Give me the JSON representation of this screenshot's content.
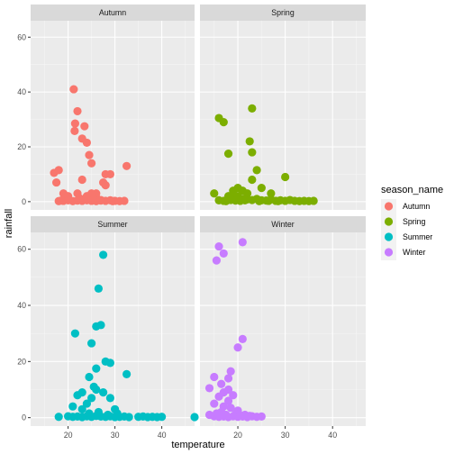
{
  "chart_data": {
    "type": "scatter",
    "facet_layout": "2x2 facet_wrap",
    "xlabel": "temperature",
    "ylabel": "rainfall",
    "xlim": [
      12,
      47
    ],
    "ylim": [
      -3,
      66
    ],
    "x_ticks": [
      20,
      30,
      40
    ],
    "y_ticks": [
      0,
      20,
      40,
      60
    ],
    "grid": true,
    "legend": {
      "title": "season_name",
      "placement": "right",
      "entries": [
        {
          "label": "Autumn",
          "color": "#F8766D"
        },
        {
          "label": "Spring",
          "color": "#7CAE00"
        },
        {
          "label": "Summer",
          "color": "#00BFC4"
        },
        {
          "label": "Winter",
          "color": "#C77CFF"
        }
      ]
    },
    "panels": [
      {
        "name": "Autumn",
        "color": "#F8766D",
        "points": [
          [
            21.2,
            41
          ],
          [
            22,
            33
          ],
          [
            21.5,
            28.5
          ],
          [
            21.4,
            25.8
          ],
          [
            23.5,
            27.5
          ],
          [
            23,
            23
          ],
          [
            24,
            21.5
          ],
          [
            24.5,
            17
          ],
          [
            25,
            14
          ],
          [
            32.5,
            13
          ],
          [
            17,
            10.5
          ],
          [
            18,
            11.5
          ],
          [
            17.5,
            7
          ],
          [
            23,
            8
          ],
          [
            28,
            10
          ],
          [
            27.5,
            7
          ],
          [
            28,
            6
          ],
          [
            26,
            3
          ],
          [
            29,
            10
          ],
          [
            19,
            3
          ],
          [
            20,
            2
          ],
          [
            22,
            3
          ],
          [
            25,
            3
          ],
          [
            24,
            2
          ],
          [
            26,
            1.5
          ],
          [
            23.5,
            1
          ],
          [
            19,
            0.3
          ],
          [
            20,
            0.5
          ],
          [
            21,
            0.2
          ],
          [
            22,
            0.4
          ],
          [
            23,
            0.3
          ],
          [
            24,
            0.5
          ],
          [
            25,
            0.3
          ],
          [
            26,
            0.2
          ],
          [
            27,
            0.4
          ],
          [
            28,
            0.3
          ],
          [
            29,
            0.5
          ],
          [
            30,
            0.3
          ],
          [
            31,
            0.2
          ],
          [
            32,
            0.3
          ],
          [
            18,
            0.2
          ],
          [
            18.5,
            0.4
          ],
          [
            22.5,
            1.2
          ],
          [
            25.5,
            0.8
          ],
          [
            27,
            0.6
          ],
          [
            29.5,
            0.2
          ]
        ]
      },
      {
        "name": "Spring",
        "color": "#7CAE00",
        "points": [
          [
            16,
            30.5
          ],
          [
            17,
            29
          ],
          [
            23,
            34
          ],
          [
            22.5,
            22
          ],
          [
            23,
            18
          ],
          [
            18,
            17.5
          ],
          [
            24,
            11.5
          ],
          [
            23,
            8
          ],
          [
            30,
            9
          ],
          [
            25,
            5
          ],
          [
            20,
            5
          ],
          [
            21,
            4
          ],
          [
            19,
            4
          ],
          [
            22,
            3
          ],
          [
            15,
            3
          ],
          [
            27,
            3
          ],
          [
            18,
            2
          ],
          [
            19,
            1.5
          ],
          [
            20,
            2
          ],
          [
            21,
            1
          ],
          [
            22,
            0.8
          ],
          [
            23,
            0.6
          ],
          [
            24,
            1
          ],
          [
            25,
            0.5
          ],
          [
            26,
            0.4
          ],
          [
            27,
            0.8
          ],
          [
            28,
            0.3
          ],
          [
            29,
            0.5
          ],
          [
            30,
            0.3
          ],
          [
            31,
            0.6
          ],
          [
            32,
            0.3
          ],
          [
            33,
            0.2
          ],
          [
            34,
            0.3
          ],
          [
            35,
            0.2
          ],
          [
            36,
            0.3
          ],
          [
            17,
            0.3
          ],
          [
            16,
            0.5
          ],
          [
            17.5,
            0.2
          ],
          [
            18.5,
            0.6
          ],
          [
            19.5,
            0.4
          ],
          [
            20.5,
            0.3
          ],
          [
            21.5,
            0.5
          ],
          [
            24.5,
            0.2
          ],
          [
            26.5,
            0.3
          ],
          [
            28.5,
            0.2
          ]
        ]
      },
      {
        "name": "Summer",
        "color": "#00BFC4",
        "points": [
          [
            27.5,
            58
          ],
          [
            26.5,
            46
          ],
          [
            26,
            32.5
          ],
          [
            27,
            33
          ],
          [
            21.5,
            30
          ],
          [
            25,
            26.5
          ],
          [
            28,
            20
          ],
          [
            29,
            19.5
          ],
          [
            32.5,
            15.5
          ],
          [
            26,
            17.5
          ],
          [
            24.5,
            14.5
          ],
          [
            25.5,
            11
          ],
          [
            26,
            10
          ],
          [
            27.5,
            9
          ],
          [
            22,
            8
          ],
          [
            23,
            9
          ],
          [
            25,
            7
          ],
          [
            29,
            7
          ],
          [
            24,
            5
          ],
          [
            21,
            4
          ],
          [
            30,
            3
          ],
          [
            23,
            3
          ],
          [
            18,
            0.3
          ],
          [
            20,
            0.5
          ],
          [
            21,
            0.3
          ],
          [
            22,
            0.4
          ],
          [
            23,
            0.2
          ],
          [
            24,
            0.5
          ],
          [
            25,
            0.3
          ],
          [
            26,
            0.6
          ],
          [
            27,
            0.4
          ],
          [
            28,
            0.3
          ],
          [
            29,
            0.5
          ],
          [
            30,
            0.2
          ],
          [
            31,
            0.3
          ],
          [
            32,
            0.4
          ],
          [
            33,
            0.2
          ],
          [
            35,
            0.3
          ],
          [
            36,
            0.4
          ],
          [
            37,
            0.2
          ],
          [
            38,
            0.3
          ],
          [
            39,
            0.2
          ],
          [
            40,
            0.3
          ],
          [
            47,
            0.2
          ],
          [
            24.5,
            1.5
          ],
          [
            26.5,
            2
          ],
          [
            28.5,
            1
          ],
          [
            30.5,
            1.5
          ]
        ]
      },
      {
        "name": "Winter",
        "color": "#C77CFF",
        "points": [
          [
            16,
            61
          ],
          [
            21,
            62.5
          ],
          [
            15.5,
            56
          ],
          [
            17,
            58.5
          ],
          [
            21,
            28
          ],
          [
            20,
            25
          ],
          [
            18.5,
            16.5
          ],
          [
            18,
            14
          ],
          [
            15,
            14.5
          ],
          [
            16.5,
            12
          ],
          [
            14,
            10.5
          ],
          [
            18,
            10
          ],
          [
            16,
            7.5
          ],
          [
            19,
            8
          ],
          [
            15,
            5
          ],
          [
            17,
            4
          ],
          [
            18.5,
            3.5
          ],
          [
            20,
            2.5
          ],
          [
            14,
            1
          ],
          [
            15,
            0.5
          ],
          [
            16,
            0.3
          ],
          [
            17,
            0.4
          ],
          [
            18,
            0.2
          ],
          [
            19,
            0.5
          ],
          [
            20,
            0.3
          ],
          [
            21,
            0.4
          ],
          [
            22,
            0.2
          ],
          [
            23,
            0.5
          ],
          [
            24,
            0.3
          ],
          [
            25,
            0.4
          ],
          [
            15.5,
            1.5
          ],
          [
            16.5,
            2
          ],
          [
            17.5,
            1
          ],
          [
            19.5,
            1.2
          ],
          [
            20.5,
            0.8
          ],
          [
            21.5,
            1
          ],
          [
            22.5,
            0.6
          ],
          [
            18,
            6
          ],
          [
            17,
            9
          ]
        ]
      }
    ]
  }
}
